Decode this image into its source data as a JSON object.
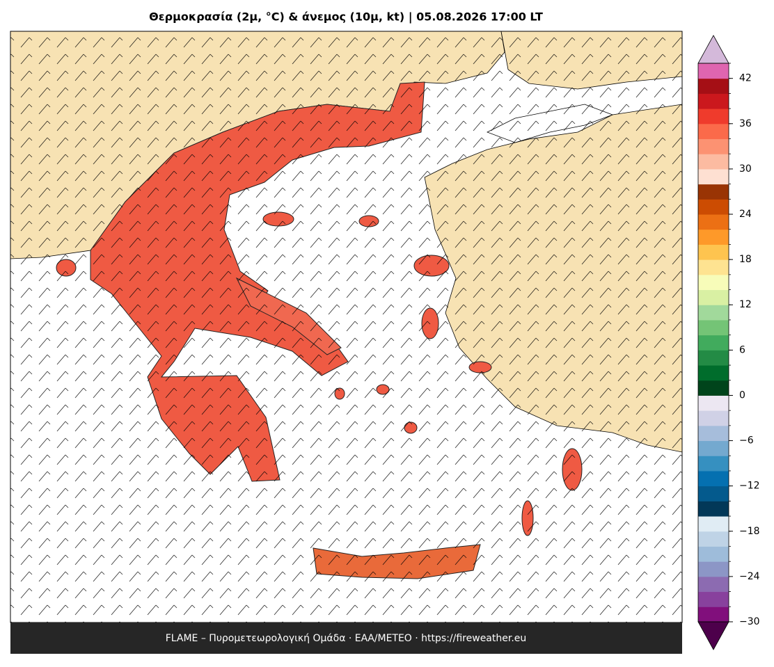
{
  "header": {
    "title": "Θερμοκρασία (2μ, °C) & άνεμος (10μ, kt)  |  05.08.2026 17:00 LT"
  },
  "colorbar": {
    "lim": [
      -30,
      44
    ],
    "ticks": [
      {
        "value": -30,
        "label": "−30"
      },
      {
        "value": -24,
        "label": "−24"
      },
      {
        "value": -18,
        "label": "−18"
      },
      {
        "value": -12,
        "label": "−12"
      },
      {
        "value": -6,
        "label": "−6"
      },
      0,
      6,
      12,
      18,
      24,
      30,
      36,
      42
    ],
    "colors": [
      "#810f7c",
      "#88419d",
      "#8c6bb1",
      "#8c96c6",
      "#9ebcda",
      "#bfd3e6",
      "#e0ecf4",
      "#023858",
      "#045a8d",
      "#0570b0",
      "#3690c0",
      "#74a9cf",
      "#a6bddb",
      "#d0d1e6",
      "#ece7f2",
      "#00441b",
      "#006d2c",
      "#238b45",
      "#41ab5d",
      "#74c476",
      "#a1d99b",
      "#d9f0a3",
      "#f7fcb9",
      "#fee391",
      "#fec44f",
      "#fe9929",
      "#ec7014",
      "#cc4c02",
      "#993404",
      "#fee0d2",
      "#fcbba1",
      "#fc9272",
      "#fb6a4a",
      "#ef3b2c",
      "#cb181d",
      "#a50f15",
      "#df65b0"
    ],
    "under_color": "#4d004b",
    "over_color": "#d4b9da"
  },
  "footer": {
    "text": "FLAME – Πυρομετεωρολογική Ομάδα · ΕΑΑ/METEO · https://fireweather.eu"
  }
}
